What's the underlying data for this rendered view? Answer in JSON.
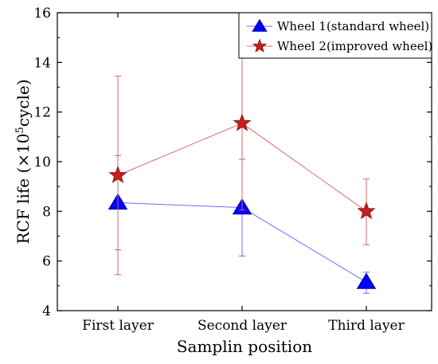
{
  "chart_data": {
    "type": "line",
    "categories": [
      "First layer",
      "Second layer",
      "Third layer"
    ],
    "xlabel": "Samplin position",
    "ylabel": {
      "prefix": "RCF life (×10",
      "superscript": "5",
      "suffix": "cycle)"
    },
    "ylim": [
      4,
      16
    ],
    "yticks": [
      "4",
      "6",
      "8",
      "10",
      "12",
      "14",
      "16"
    ],
    "grid": false,
    "legend_position": "top-right",
    "series": [
      {
        "name": "Wheel 1(standard wheel)",
        "marker": "triangle",
        "color": "#0000ff",
        "line_color": "#6b6bff",
        "values": [
          8.35,
          8.15,
          5.15
        ],
        "error_low": [
          6.45,
          6.2,
          4.7
        ],
        "error_high": [
          10.25,
          10.1,
          5.55
        ]
      },
      {
        "name": "Wheel 2(improved wheel)",
        "marker": "star",
        "color": "#c41e1e",
        "line_color": "#d86b6b",
        "values": [
          9.45,
          11.55,
          8.0
        ],
        "error_low": [
          5.45,
          8.05,
          6.65
        ],
        "error_high": [
          13.45,
          15.0,
          9.3
        ]
      }
    ]
  }
}
